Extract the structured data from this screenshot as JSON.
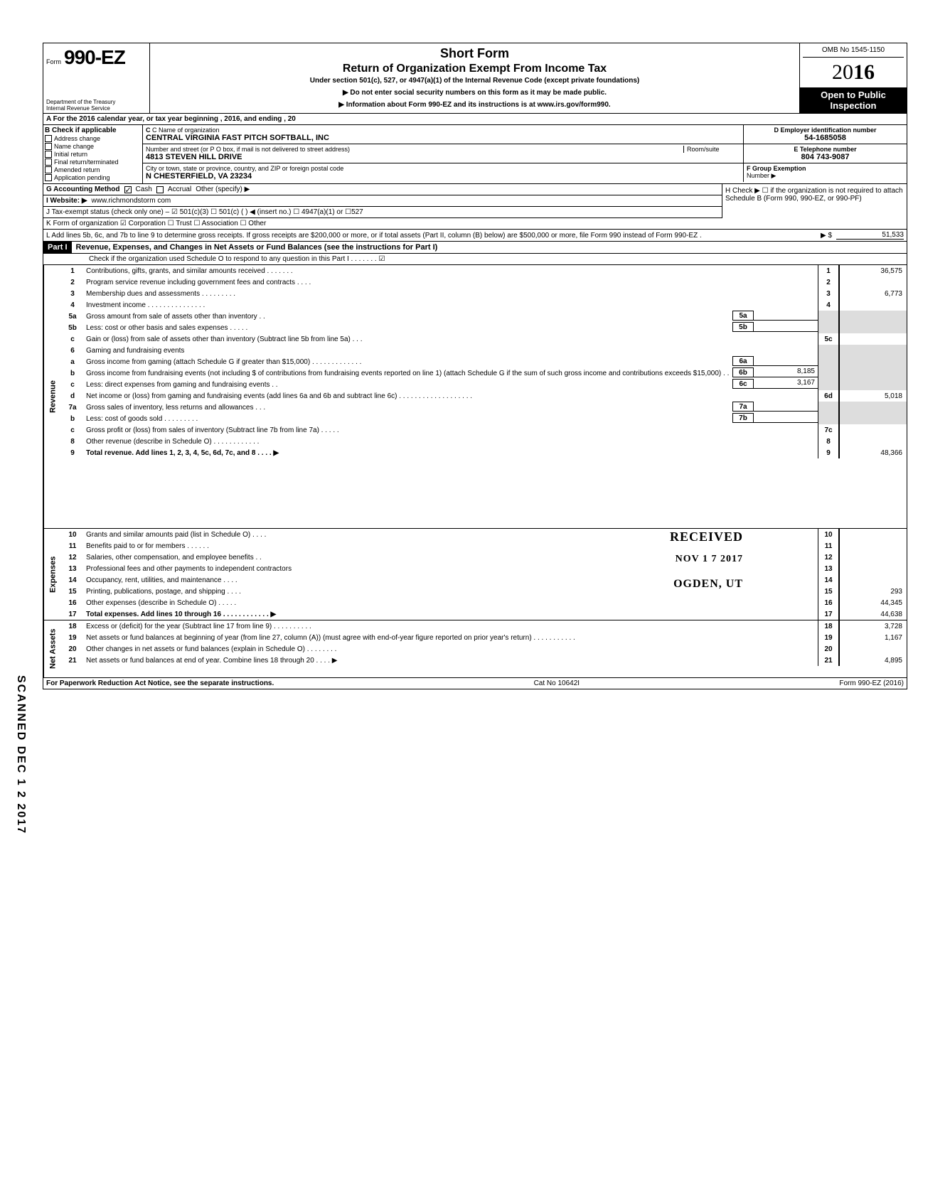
{
  "header": {
    "form_label": "Form",
    "form_number": "990-EZ",
    "title": "Short Form",
    "subtitle": "Return of Organization Exempt From Income Tax",
    "under": "Under section 501(c), 527, or 4947(a)(1) of the Internal Revenue Code (except private foundations)",
    "ssn_warn": "▶ Do not enter social security numbers on this form as it may be made public.",
    "info": "▶ Information about Form 990-EZ and its instructions is at www.irs.gov/form990.",
    "dept1": "Department of the Treasury",
    "dept2": "Internal Revenue Service",
    "omb": "OMB No 1545-1150",
    "year_prefix": "20",
    "year_suffix": "16",
    "open1": "Open to Public",
    "open2": "Inspection"
  },
  "lineA": "A  For the 2016 calendar year, or tax year beginning                                                 , 2016, and ending                                   , 20",
  "sectionB": {
    "label": "B  Check if applicable",
    "opts": [
      "Address change",
      "Name change",
      "Initial return",
      "Final return/terminated",
      "Amended return",
      "Application pending"
    ]
  },
  "sectionC": {
    "name_label": "C  Name of organization",
    "name": "CENTRAL VIRGINIA FAST PITCH SOFTBALL, INC",
    "street_label": "Number and street (or P O  box, if mail is not delivered to street address)",
    "room_label": "Room/suite",
    "street": "4813 STEVEN HILL DRIVE",
    "city_label": "City or town, state or province, country, and ZIP or foreign postal code",
    "city": "N CHESTERFIELD, VA 23234"
  },
  "sectionD": {
    "label": "D Employer identification number",
    "value": "54-1685058"
  },
  "sectionE": {
    "label": "E Telephone number",
    "value": "804 743-9087"
  },
  "sectionF": {
    "label": "F  Group Exemption",
    "label2": "Number ▶"
  },
  "lineG": {
    "label": "G  Accounting Method",
    "cash": "Cash",
    "accrual": "Accrual",
    "other": "Other (specify) ▶"
  },
  "lineH": "H  Check ▶ ☐ if the organization is not required to attach Schedule B (Form 990, 990-EZ, or 990-PF)",
  "lineI": {
    "label": "I   Website: ▶",
    "value": "www.richmondstorm com"
  },
  "lineJ": "J  Tax-exempt status (check only one) –  ☑ 501(c)(3)    ☐ 501(c) (       ) ◀ (insert no.) ☐ 4947(a)(1) or   ☐527",
  "lineK": "K  Form of organization    ☑ Corporation   ☐ Trust           ☐ Association       ☐ Other",
  "lineL": {
    "text": "L  Add lines 5b, 6c, and 7b to line 9 to determine gross receipts. If gross receipts are $200,000 or more, or if total assets (Part II, column (B) below) are $500,000 or more, file Form 990 instead of Form 990-EZ .",
    "arrow": "▶   $",
    "value": "51,533"
  },
  "part1": {
    "label": "Part I",
    "title": "Revenue, Expenses, and Changes in Net Assets or Fund Balances (see the instructions for Part I)",
    "scheduleO": "Check if the organization used Schedule O to respond to any question in this Part I  .    .    .    .    .    .    .  ☑"
  },
  "sections": {
    "revenue": "Revenue",
    "expenses": "Expenses",
    "netassets": "Net Assets"
  },
  "lines": {
    "1": {
      "d": "Contributions, gifts, grants, and similar amounts received     .     .     .     .     .     .     .",
      "v": "36,575"
    },
    "2": {
      "d": "Program service revenue including government fees and contracts      .     .     .     .",
      "v": ""
    },
    "3": {
      "d": "Membership dues and assessments .    .    .                .                  .     .     .     .           .",
      "v": "6,773"
    },
    "4": {
      "d": "Investment income         .        .       .       .      .      .     .     .     .      .      .      .      .      .     .",
      "v": ""
    },
    "5a": {
      "d": "Gross amount from sale of assets other than inventory       .      .",
      "box": "5a",
      "iv": ""
    },
    "5b": {
      "d": "Less: cost or other basis and sales expenses .    .    .         .     .",
      "box": "5b",
      "iv": ""
    },
    "5c": {
      "d": "Gain or (loss) from sale of assets other than inventory (Subtract line 5b from line 5a)  .   .      .",
      "v": ""
    },
    "6": {
      "d": "Gaming and fundraising events"
    },
    "6a": {
      "d": "Gross income from gaming (attach Schedule G if greater than $15,000)  .       .    .    .    .        .     .     .     .      .      .      .      .",
      "box": "6a",
      "iv": ""
    },
    "6b": {
      "d": "Gross income from fundraising events (not including  $                           of contributions from fundraising events reported on line 1) (attach Schedule G if the sum of such gross income and contributions exceeds $15,000) .   .",
      "box": "6b",
      "iv": "8,185"
    },
    "6c": {
      "d": "Less: direct expenses from gaming and fundraising events    .   .",
      "box": "6c",
      "iv": "3,167"
    },
    "6d": {
      "d": "Net income or (loss) from gaming and fundraising events (add lines 6a and 6b and subtract line 6c)     .    .    .    .    .    .        .      .      .      .                  .     .     .      .      .      .      .      .      .",
      "v": "5,018"
    },
    "7a": {
      "d": "Gross sales of inventory, less returns and allowances   .    .      .",
      "box": "7a",
      "iv": ""
    },
    "7b": {
      "d": "Less: cost of goods sold       .     .     .     .     .     .     .     .      .",
      "box": "7b",
      "iv": ""
    },
    "7c": {
      "d": "Gross profit or (loss) from sales of inventory (Subtract line 7b from line 7a)   .      .     .     .     .",
      "v": ""
    },
    "8": {
      "d": "Other revenue (describe in Schedule O) .    .    .    .        .           .     .     .      .      .      .      .",
      "v": ""
    },
    "9": {
      "d": "Total revenue. Add lines 1, 2, 3, 4, 5c, 6d, 7c, and 8    .    .    .    .                                           ▶",
      "v": "48,366",
      "bold": true
    },
    "10": {
      "d": "Grants and similar amounts paid (list in Schedule O)    .    .    .     .",
      "v": ""
    },
    "11": {
      "d": "Benefits paid to or for members    .    .    .    .    .        .",
      "v": ""
    },
    "12": {
      "d": "Salaries, other compensation, and employee benefits      .     .",
      "v": ""
    },
    "13": {
      "d": "Professional fees and other payments to independent contractors",
      "v": ""
    },
    "14": {
      "d": "Occupancy, rent, utilities, and maintenance     .     .     .     .",
      "v": ""
    },
    "15": {
      "d": "Printing, publications, postage, and shipping .    .    .        .",
      "v": "293"
    },
    "16": {
      "d": "Other expenses (describe in Schedule O)   .    .    .    .      .",
      "v": "44,345"
    },
    "17": {
      "d": "Total expenses. Add lines 10 through 16  .    .    .        .           .     .     .      .      .      .      .      .    ▶",
      "v": "44,638",
      "bold": true
    },
    "18": {
      "d": "Excess or (deficit) for the year (Subtract line 17 from line 9)     .    .    .    .    .    .    .    .    .    .",
      "v": "3,728"
    },
    "19": {
      "d": "Net assets or fund balances at beginning of year (from line 27, column (A)) (must agree with end-of-year figure reported on prior year's return)     .        .           .    .    .    .    .    .    .    .    .",
      "v": "1,167"
    },
    "20": {
      "d": "Other changes in net assets or fund balances (explain in Schedule O) .    .    .    .    .    .    .    .",
      "v": ""
    },
    "21": {
      "d": "Net assets or fund balances at end of year. Combine lines 18 through 20        .     .      .           .  ▶",
      "v": "4,895"
    }
  },
  "stamps": {
    "received": "RECEIVED",
    "date": "NOV 1 7 2017",
    "ogden": "OGDEN, UT"
  },
  "footer": {
    "left": "For Paperwork Reduction Act Notice, see the separate instructions.",
    "center": "Cat  No  10642I",
    "right": "Form 990-EZ (2016)"
  },
  "scanned": "SCANNED  DEC 1 2 2017"
}
